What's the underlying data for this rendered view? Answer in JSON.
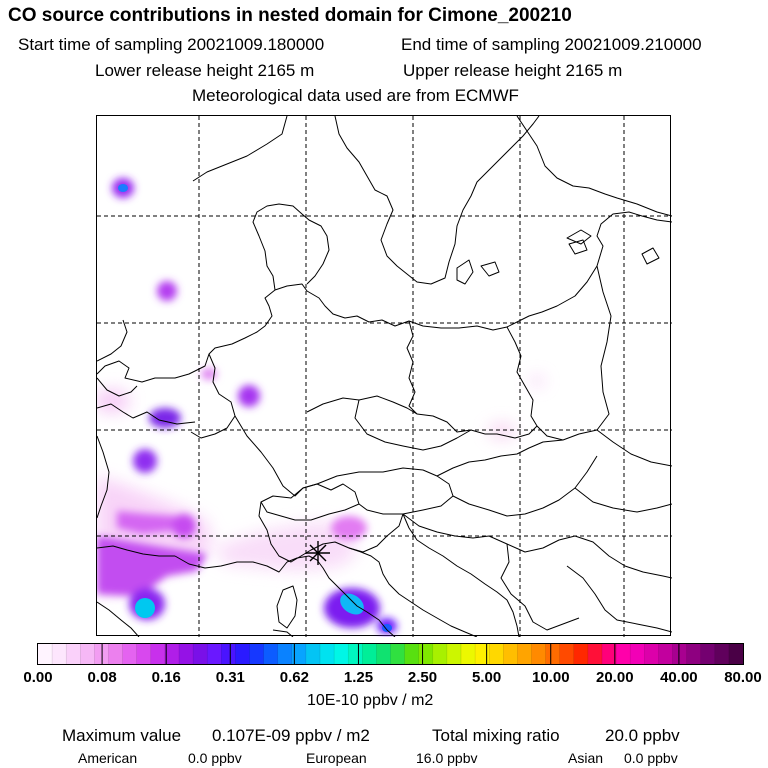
{
  "header": {
    "title": "CO  source contributions in nested domain for Cimone_200210",
    "start_time": "Start time of sampling 20021009.180000",
    "end_time": "End time of sampling 20021009.210000",
    "lower_release": "Lower release height 2165 m",
    "upper_release": "Upper release height 2165 m",
    "met_data": "Meteorological data used are from ECMWF"
  },
  "legend": {
    "tick_labels": [
      "0.00",
      "0.08",
      "0.16",
      "0.31",
      "0.62",
      "1.25",
      "2.50",
      "5.00",
      "10.00",
      "20.00",
      "40.00",
      "80.00"
    ],
    "unit": "10E-10 ppbv / m2",
    "colors": [
      "#fff4ff",
      "#fde6fd",
      "#fad1fa",
      "#f6b8f6",
      "#f29df2",
      "#ec80ee",
      "#e463f0",
      "#d848ee",
      "#c830ec",
      "#b01ee8",
      "#9512e6",
      "#7a10e8",
      "#6a18ff",
      "#4a14ff",
      "#2a1aff",
      "#1638ff",
      "#0c5cff",
      "#0a82ff",
      "#08a4ff",
      "#04c4f4",
      "#00e2f0",
      "#00f6e6",
      "#00f6c0",
      "#00ee98",
      "#10e270",
      "#30e040",
      "#58e010",
      "#80e800",
      "#a8f000",
      "#ccf600",
      "#ecf800",
      "#fff000",
      "#ffd800",
      "#ffbe00",
      "#ffa400",
      "#ff8a00",
      "#ff6c00",
      "#ff4a00",
      "#ff2800",
      "#ff1038",
      "#ff007a",
      "#ff00aa",
      "#f200b6",
      "#dc00aa",
      "#c2009e",
      "#a80090",
      "#8e0080",
      "#740070",
      "#60005c",
      "#4a0046"
    ]
  },
  "footer": {
    "max_label": "Maximum value",
    "max_value": "0.107E-09 ppbv / m2",
    "total_label": "Total mixing ratio",
    "total_value": "20.0 ppbv",
    "american_label": "American",
    "american_value": "0.0 ppbv",
    "european_label": "European",
    "european_value": "16.0 ppbv",
    "asian_label": "Asian",
    "asian_value": "0.0 ppbv"
  },
  "map": {
    "receptor_marker": "station-star-icon",
    "grid_style": "dashed"
  }
}
